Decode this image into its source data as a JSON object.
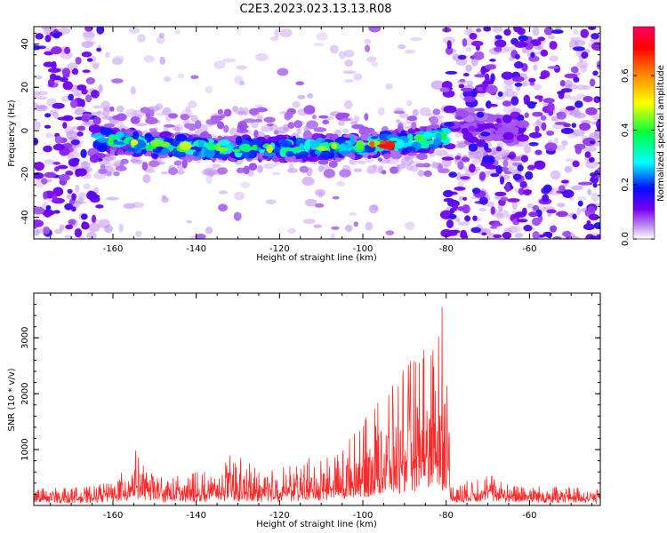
{
  "title": "C2E3.2023.023.13.13.R08",
  "chart_data": [
    {
      "type": "heatmap",
      "xlabel": "Height of straight line (km)",
      "ylabel": "Frequency (Hz)",
      "xlim": [
        -179,
        -43
      ],
      "ylim": [
        -50,
        48
      ],
      "xticks": [
        -160,
        -140,
        -120,
        -100,
        -80,
        -60
      ],
      "yticks": [
        -40,
        -20,
        0,
        20,
        40
      ],
      "colorbar": {
        "label": "Normalized spectral amplitude",
        "range": [
          0.0,
          0.78
        ],
        "ticks": [
          0.0,
          0.2,
          0.4,
          0.6
        ],
        "tick_labels": [
          "0.0",
          "0.2",
          "0.4",
          "0.6"
        ],
        "colors": [
          "#ffffff",
          "#c090f0",
          "#7a00f0",
          "#0010ff",
          "#00ffff",
          "#00ff40",
          "#ffff00",
          "#ff8000",
          "#ff0000",
          "#ff0060"
        ]
      },
      "features": [
        {
          "kind": "band",
          "x_range": [
            -164,
            -80
          ],
          "freq_center_start": -4,
          "freq_center_end": -3,
          "freq_center_mid": -9,
          "freq_halfwidth": 5,
          "peak_amplitude": 0.78,
          "peak_x": -95
        },
        {
          "kind": "band",
          "x_range": [
            -77,
            -62
          ],
          "freq_center_start": 4,
          "freq_center_end": 0,
          "freq_halfwidth": 5,
          "peak_amplitude": 0.35
        },
        {
          "kind": "noise",
          "x_range": [
            -179,
            -163
          ],
          "level": "high"
        },
        {
          "kind": "noise",
          "x_range": [
            -80,
            -43
          ],
          "level": "high"
        },
        {
          "kind": "noise",
          "x_range": [
            -163,
            -80
          ],
          "level": "low"
        }
      ]
    },
    {
      "type": "line",
      "xlabel": "Height of straight line (km)",
      "ylabel": "SNR (10 * v/v)",
      "xlim": [
        -179,
        -43
      ],
      "ylim": [
        0,
        3800
      ],
      "xticks": [
        -160,
        -140,
        -120,
        -100,
        -80,
        -60
      ],
      "yticks": [
        1000,
        2000,
        3000
      ],
      "color": "#ff2a2a",
      "envelope": [
        {
          "x": -179,
          "baseline": 120,
          "peak": 300
        },
        {
          "x": -164,
          "baseline": 150,
          "peak": 350
        },
        {
          "x": -157,
          "baseline": 250,
          "peak": 650
        },
        {
          "x": -155,
          "baseline": 350,
          "peak": 1080
        },
        {
          "x": -152,
          "baseline": 250,
          "peak": 650
        },
        {
          "x": -147,
          "baseline": 180,
          "peak": 500
        },
        {
          "x": -135,
          "baseline": 200,
          "peak": 700
        },
        {
          "x": -131,
          "baseline": 250,
          "peak": 950
        },
        {
          "x": -125,
          "baseline": 200,
          "peak": 650
        },
        {
          "x": -118,
          "baseline": 220,
          "peak": 700
        },
        {
          "x": -112,
          "baseline": 250,
          "peak": 900
        },
        {
          "x": -106,
          "baseline": 300,
          "peak": 1000
        },
        {
          "x": -100,
          "baseline": 450,
          "peak": 1500
        },
        {
          "x": -95,
          "baseline": 600,
          "peak": 2000
        },
        {
          "x": -90,
          "baseline": 750,
          "peak": 2450
        },
        {
          "x": -85,
          "baseline": 850,
          "peak": 3000
        },
        {
          "x": -81,
          "baseline": 900,
          "peak": 3800
        },
        {
          "x": -79.5,
          "baseline": 700,
          "peak": 2200
        },
        {
          "x": -79,
          "baseline": 150,
          "peak": 400
        },
        {
          "x": -74,
          "baseline": 180,
          "peak": 450
        },
        {
          "x": -70,
          "baseline": 250,
          "peak": 600
        },
        {
          "x": -66,
          "baseline": 180,
          "peak": 400
        },
        {
          "x": -43,
          "baseline": 120,
          "peak": 300
        }
      ]
    }
  ]
}
